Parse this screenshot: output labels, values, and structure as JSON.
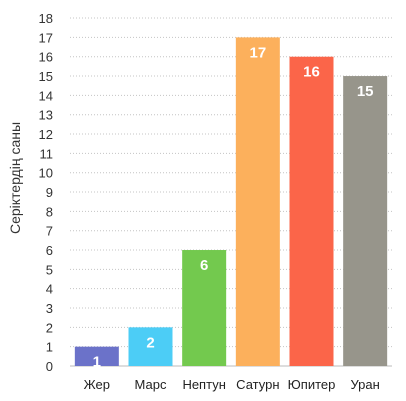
{
  "chart_data": {
    "type": "bar",
    "categories": [
      "Жер",
      "Марс",
      "Нептун",
      "Сатурн",
      "Юпитер",
      "Уран"
    ],
    "values": [
      1,
      2,
      6,
      17,
      16,
      15
    ],
    "colors": [
      "#6b72c9",
      "#4ccdf6",
      "#73c94e",
      "#fcb05c",
      "#fb6549",
      "#97958b"
    ],
    "ylabel": "Серіктердің саны",
    "ylim": [
      0,
      18
    ],
    "yticks": [
      0,
      1,
      2,
      3,
      4,
      5,
      6,
      7,
      8,
      9,
      10,
      11,
      12,
      13,
      14,
      15,
      16,
      17,
      18
    ],
    "grid": true,
    "data_labels": true
  }
}
